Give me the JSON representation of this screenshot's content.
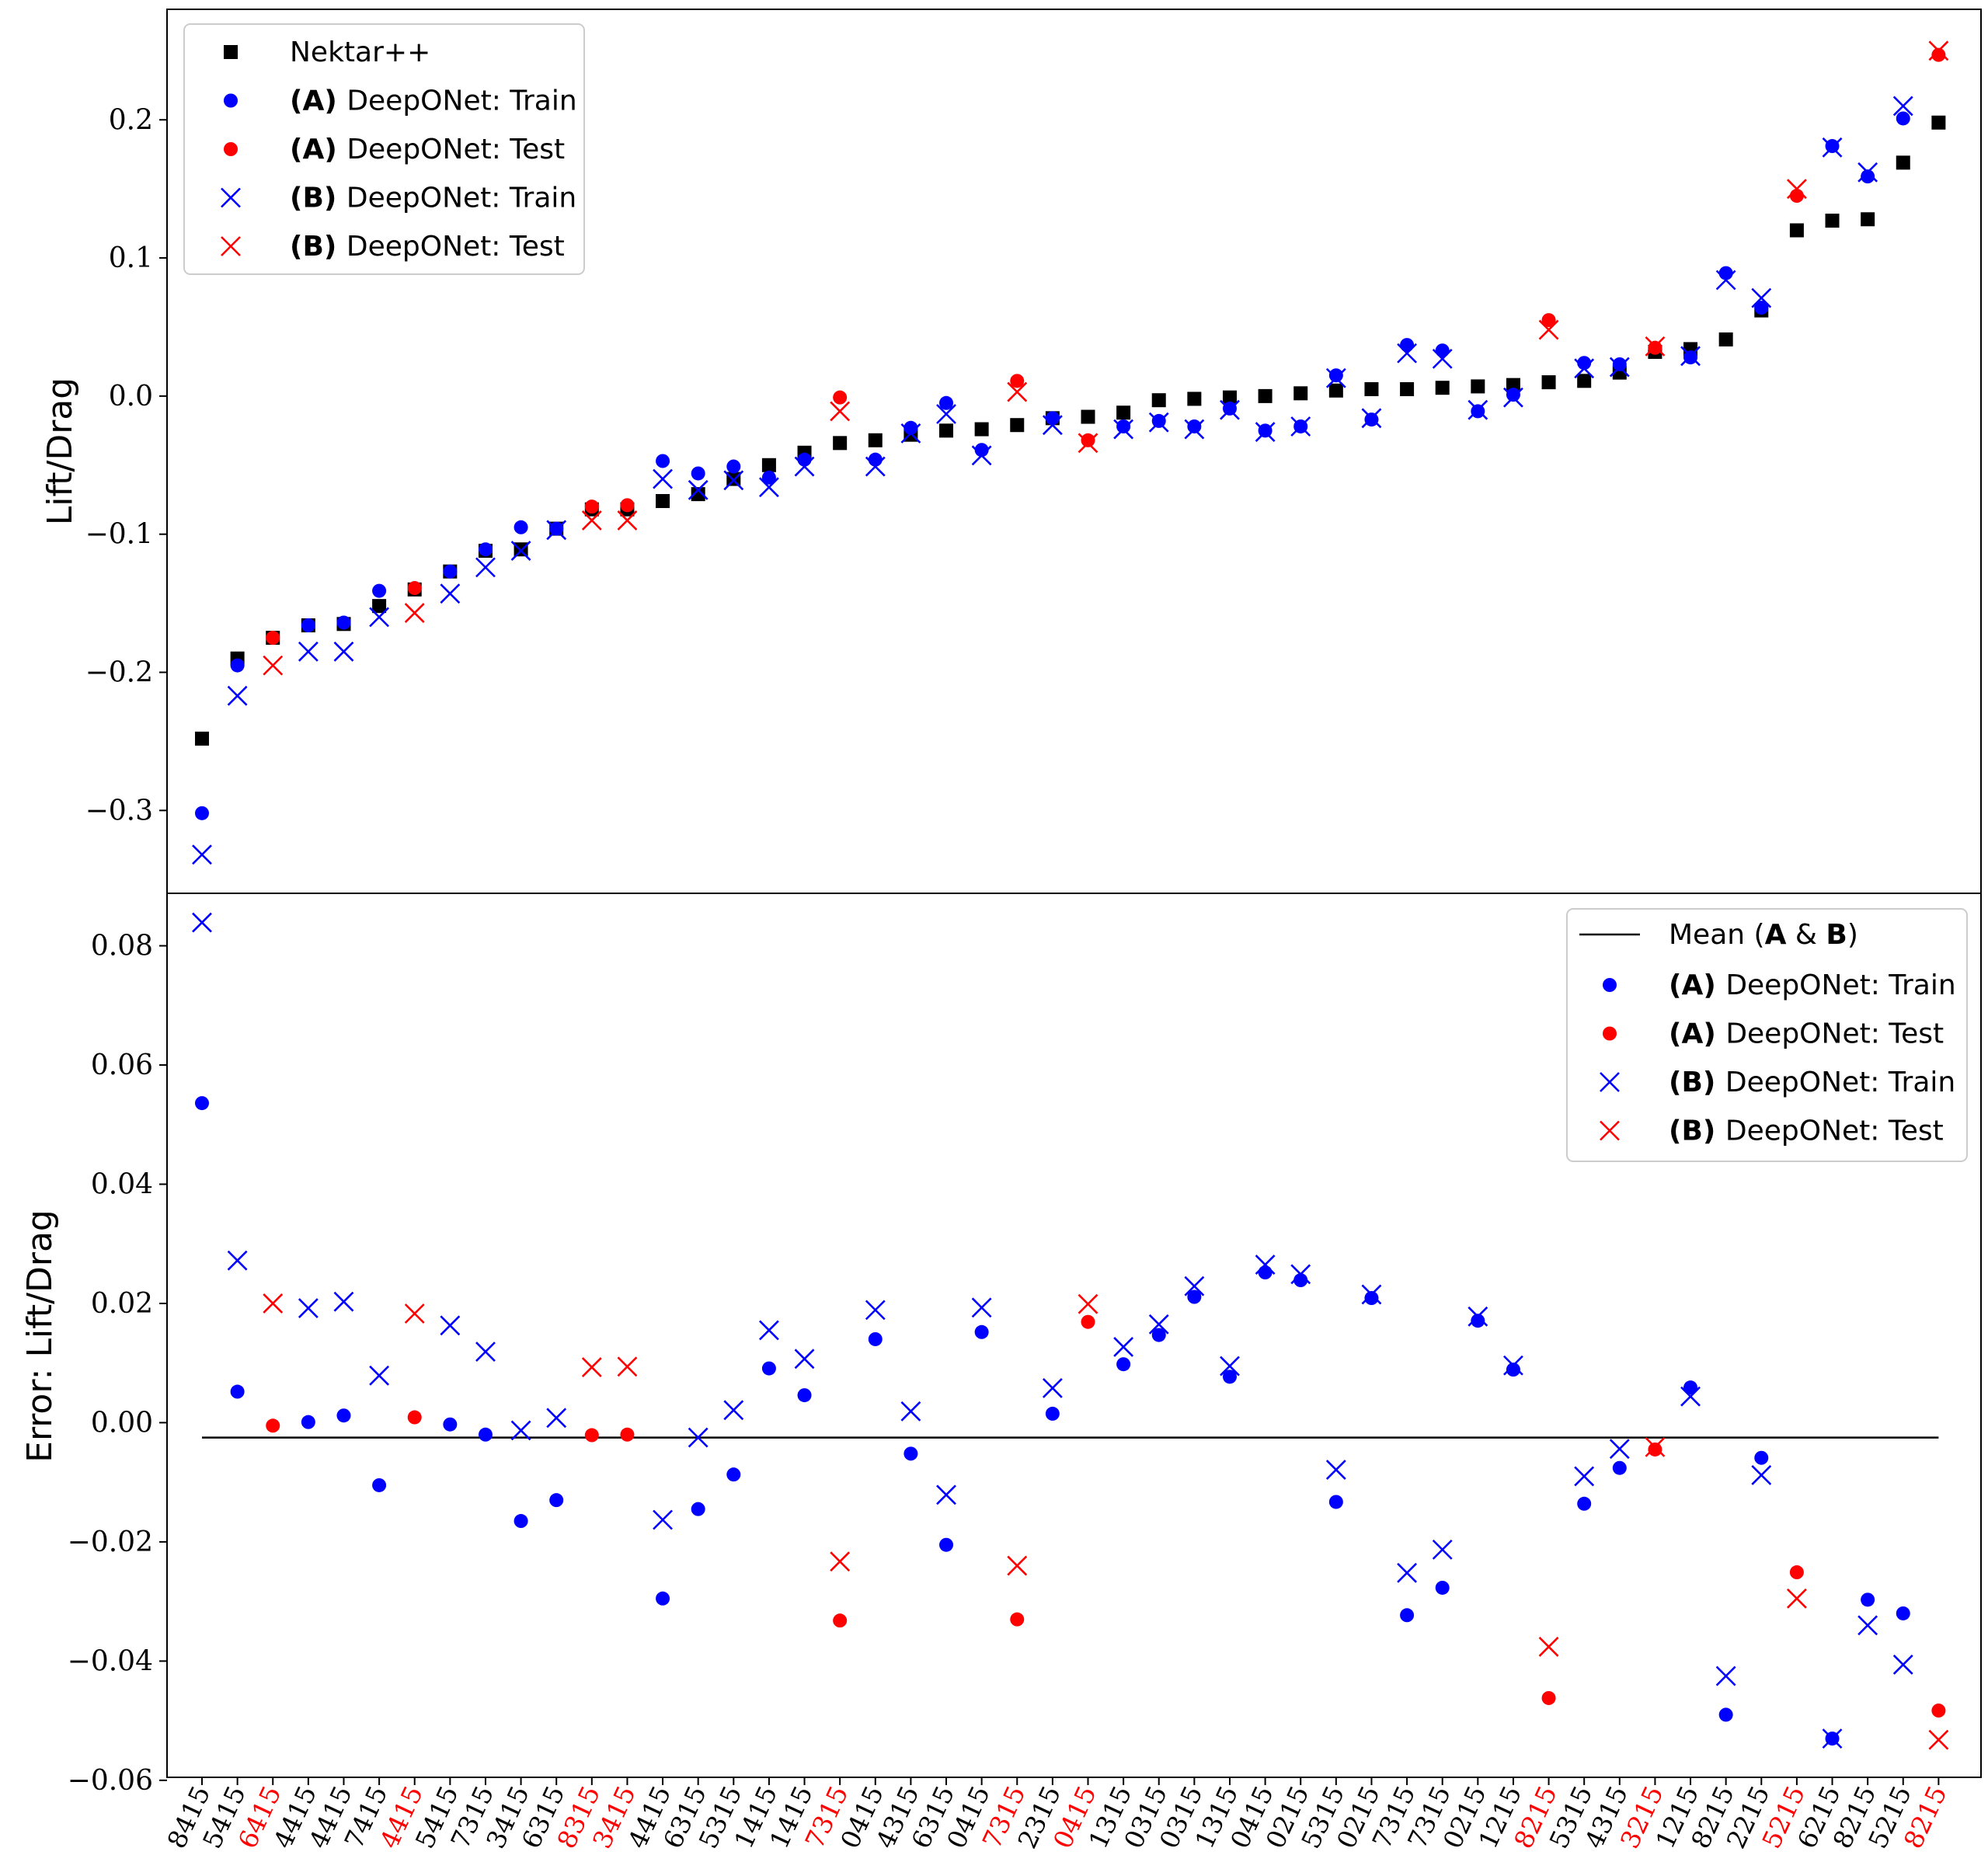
{
  "colors": {
    "nektar": "#000000",
    "train": "#0000ff",
    "test": "#ff0000",
    "mean": "#000000"
  },
  "chart_data": [
    {
      "type": "scatter",
      "ylabel": "Lift/Drag",
      "xlabel": "",
      "ylim": [
        -0.36,
        0.28
      ],
      "yticks": [
        -0.3,
        -0.2,
        -0.1,
        0.0,
        0.1,
        0.2
      ],
      "ytick_labels": [
        "−0.3",
        "−0.2",
        "−0.1",
        "0.0",
        "0.1",
        "0.2"
      ],
      "grid": false,
      "legend_position": "top-left",
      "categories": [
        "8415",
        "5415",
        "6415",
        "4415",
        "4415",
        "7415",
        "4415",
        "5415",
        "7315",
        "3415",
        "6315",
        "8315",
        "3415",
        "4415",
        "6315",
        "5315",
        "1415",
        "1415",
        "7315",
        "0415",
        "4315",
        "6315",
        "0415",
        "7315",
        "2315",
        "0415",
        "1315",
        "0315",
        "0315",
        "1315",
        "0415",
        "0215",
        "5315",
        "0215",
        "7315",
        "7315",
        "0215",
        "1215",
        "8215",
        "5315",
        "4315",
        "3215",
        "1215",
        "8215",
        "2215",
        "5215",
        "6215",
        "8215",
        "5215",
        "8215"
      ],
      "test_indices": [
        2,
        6,
        11,
        12,
        18,
        23,
        25,
        38,
        41,
        45,
        49
      ],
      "series": [
        {
          "name": "Nektar++",
          "marker": "square",
          "values": [
            -0.248,
            -0.19,
            -0.175,
            -0.166,
            -0.165,
            -0.152,
            -0.14,
            -0.127,
            -0.112,
            -0.111,
            -0.096,
            -0.082,
            -0.082,
            -0.076,
            -0.071,
            -0.06,
            -0.05,
            -0.041,
            -0.034,
            -0.032,
            -0.028,
            -0.025,
            -0.024,
            -0.021,
            -0.016,
            -0.015,
            -0.012,
            -0.003,
            -0.002,
            -0.001,
            0.0,
            0.002,
            0.004,
            0.005,
            0.005,
            0.006,
            0.007,
            0.008,
            0.01,
            0.011,
            0.017,
            0.032,
            0.034,
            0.041,
            0.062,
            0.12,
            0.127,
            0.128,
            0.169,
            0.198
          ]
        },
        {
          "name_prefix": "(A)",
          "name": "DeepONet: Train",
          "marker": "circle",
          "split": "train",
          "values": [
            -0.302,
            -0.195,
            -0.175,
            -0.166,
            -0.164,
            -0.141,
            -0.139,
            -0.127,
            -0.111,
            -0.095,
            -0.096,
            -0.08,
            -0.079,
            -0.047,
            -0.056,
            -0.051,
            -0.059,
            -0.046,
            -0.001,
            -0.046,
            -0.023,
            -0.005,
            -0.039,
            0.011,
            -0.016,
            -0.032,
            -0.022,
            -0.018,
            -0.022,
            -0.009,
            -0.025,
            -0.022,
            0.015,
            -0.017,
            0.037,
            0.033,
            -0.011,
            0.001,
            0.055,
            0.024,
            0.023,
            0.035,
            0.028,
            0.089,
            0.064,
            0.145,
            0.181,
            0.159,
            0.201,
            0.247
          ]
        },
        {
          "name_prefix": "(A)",
          "name": "DeepONet: Test",
          "marker": "circle",
          "split": "test"
        },
        {
          "name_prefix": "(B)",
          "name": "DeepONet: Train",
          "marker": "x",
          "split": "train",
          "values": [
            -0.332,
            -0.217,
            -0.195,
            -0.185,
            -0.185,
            -0.16,
            -0.157,
            -0.143,
            -0.124,
            -0.112,
            -0.097,
            -0.09,
            -0.09,
            -0.06,
            -0.068,
            -0.061,
            -0.066,
            -0.051,
            -0.011,
            -0.051,
            -0.027,
            -0.013,
            -0.043,
            0.003,
            -0.021,
            -0.034,
            -0.024,
            -0.019,
            -0.024,
            -0.01,
            -0.026,
            -0.022,
            0.013,
            -0.016,
            0.031,
            0.027,
            -0.01,
            -0.001,
            0.048,
            0.02,
            0.021,
            0.036,
            0.029,
            0.084,
            0.071,
            0.15,
            0.18,
            0.162,
            0.21,
            0.25
          ]
        },
        {
          "name_prefix": "(B)",
          "name": "DeepONet: Test",
          "marker": "x",
          "split": "test"
        }
      ]
    },
    {
      "type": "scatter",
      "ylabel": "Error: Lift/Drag",
      "xlabel": "",
      "ylim": [
        -0.0595,
        0.0888
      ],
      "yticks": [
        -0.06,
        -0.04,
        -0.02,
        0.0,
        0.02,
        0.04,
        0.06,
        0.08
      ],
      "ytick_labels": [
        "−0.06",
        "−0.04",
        "−0.02",
        "0.00",
        "0.02",
        "0.04",
        "0.06",
        "0.08"
      ],
      "grid": false,
      "legend_position": "top-right",
      "mean_line": {
        "name_text": "Mean (",
        "name_bold_a": "A",
        "name_amp": " & ",
        "name_bold_b": "B",
        "name_close": ")",
        "value": -0.0025
      },
      "series": [
        {
          "name_prefix": "(A)",
          "name": "DeepONet: Train",
          "marker": "circle",
          "split": "train",
          "values": [
            0.0536,
            0.0052,
            -0.0005,
            0.0001,
            0.0012,
            -0.0105,
            0.0009,
            -0.0003,
            -0.002,
            -0.0165,
            -0.013,
            -0.0021,
            -0.002,
            -0.0295,
            -0.0145,
            -0.0087,
            0.0091,
            0.0046,
            -0.0332,
            0.014,
            -0.0052,
            -0.0205,
            0.0152,
            -0.033,
            0.0015,
            0.0169,
            0.0098,
            0.0147,
            0.0211,
            0.0077,
            0.0252,
            0.0239,
            -0.0133,
            0.0209,
            -0.0323,
            -0.0277,
            0.0171,
            0.0089,
            -0.0462,
            -0.0136,
            -0.0076,
            -0.0045,
            0.0059,
            -0.049,
            -0.0059,
            -0.0251,
            -0.053,
            -0.0297,
            -0.032,
            -0.0483
          ]
        },
        {
          "name_prefix": "(A)",
          "name": "DeepONet: Test",
          "marker": "circle",
          "split": "test"
        },
        {
          "name_prefix": "(B)",
          "name": "DeepONet: Train",
          "marker": "x",
          "split": "train",
          "values": [
            0.0839,
            0.0272,
            0.02,
            0.0192,
            0.0203,
            0.0079,
            0.0183,
            0.0163,
            0.0119,
            -0.0013,
            0.0008,
            0.0093,
            0.0094,
            -0.0163,
            -0.0025,
            0.0021,
            0.0155,
            0.0107,
            -0.0233,
            0.0189,
            0.0019,
            -0.0121,
            0.0193,
            -0.024,
            0.0058,
            0.0199,
            0.0127,
            0.0165,
            0.0229,
            0.0095,
            0.0265,
            0.0249,
            -0.0079,
            0.0215,
            -0.0252,
            -0.0213,
            0.0178,
            0.0096,
            -0.0376,
            -0.009,
            -0.0044,
            -0.0041,
            0.0044,
            -0.0425,
            -0.0088,
            -0.0295,
            -0.053,
            -0.034,
            -0.0406,
            -0.0532
          ]
        },
        {
          "name_prefix": "(B)",
          "name": "DeepONet: Test",
          "marker": "x",
          "split": "test"
        }
      ]
    }
  ]
}
